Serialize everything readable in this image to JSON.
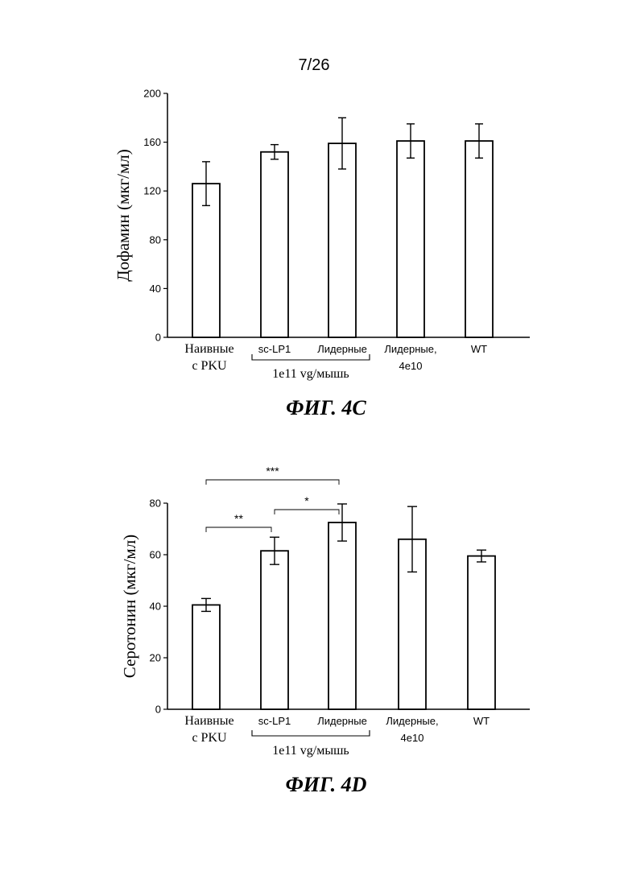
{
  "page_number": "7/26",
  "chart_data": [
    {
      "type": "bar",
      "caption": "ФИГ. 4C",
      "ylabel": "Дофамин (мкг/мл)",
      "ylim": [
        0,
        200
      ],
      "yticks": [
        0,
        40,
        80,
        120,
        160,
        200
      ],
      "categories": [
        "Наивные с PKU",
        "sc-LP1",
        "Лидерные",
        "Лидерные, 4e10",
        "WT"
      ],
      "category_lines": [
        [
          "Наивные",
          "с PKU"
        ],
        [
          "sc-LP1"
        ],
        [
          "Лидерные"
        ],
        [
          "Лидерные,",
          "4e10"
        ],
        [
          "WT"
        ]
      ],
      "values": [
        126,
        152,
        159,
        161,
        161
      ],
      "error": [
        18,
        6,
        21,
        14,
        14
      ],
      "group_bracket": {
        "label": "1e11 vg/мышь",
        "from": 1,
        "to": 2
      },
      "significance": []
    },
    {
      "type": "bar",
      "caption": "ФИГ. 4D",
      "ylabel": "Серотонин (мкг/мл)",
      "ylim": [
        0,
        80
      ],
      "yticks": [
        0,
        20,
        40,
        60,
        80
      ],
      "categories": [
        "Наивные с PKU",
        "sc-LP1",
        "Лидерные",
        "Лидерные, 4e10",
        "WT"
      ],
      "category_lines": [
        [
          "Наивные",
          "с PKU"
        ],
        [
          "sc-LP1"
        ],
        [
          "Лидерные"
        ],
        [
          "Лидерные,",
          "4e10"
        ],
        [
          "WT"
        ]
      ],
      "values": [
        40.5,
        61.5,
        72.5,
        66,
        59.5
      ],
      "error": [
        2.5,
        5.3,
        7.2,
        12.7,
        2.3
      ],
      "group_bracket": {
        "label": "1e11 vg/мышь",
        "from": 1,
        "to": 2
      },
      "significance": [
        {
          "from": 0,
          "to": 1,
          "label": "**"
        },
        {
          "from": 1,
          "to": 2,
          "label": "*"
        },
        {
          "from": 0,
          "to": 2,
          "label": "***"
        }
      ]
    }
  ]
}
